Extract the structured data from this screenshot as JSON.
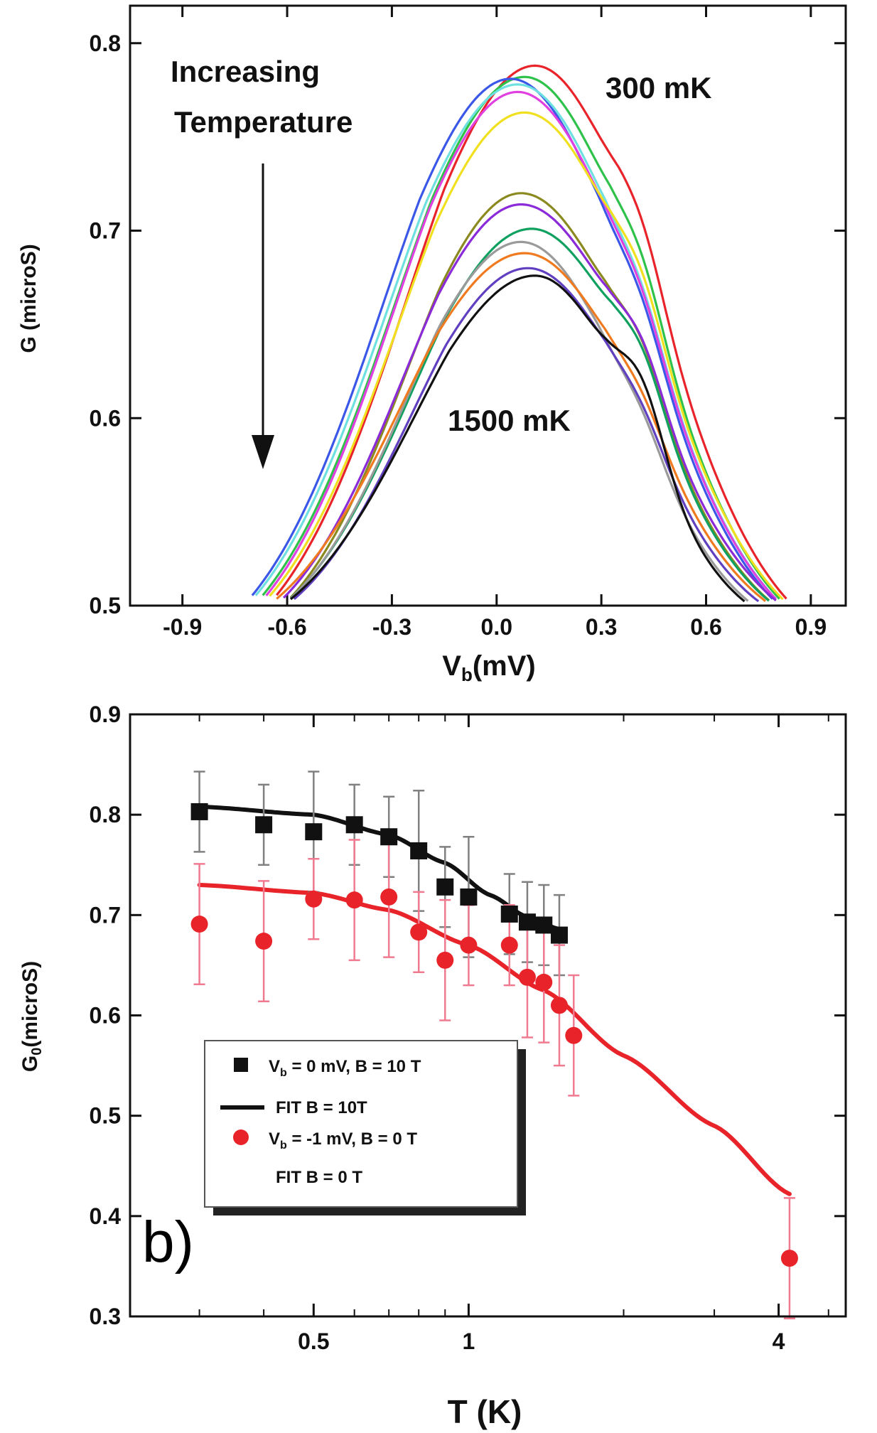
{
  "chart_data": [
    {
      "type": "line",
      "panel": "top",
      "xlabel": "V",
      "xlabel_sub": "b",
      "xlabel_unit": "(mV)",
      "ylabel": "G (microS)",
      "xlim": [
        -1.05,
        1.0
      ],
      "ylim": [
        0.5,
        0.82
      ],
      "xticks": [
        "-0.9",
        "-0.6",
        "-0.3",
        "0.0",
        "0.3",
        "0.6",
        "0.9"
      ],
      "xtick_values": [
        -0.9,
        -0.6,
        -0.3,
        0.0,
        0.3,
        0.6,
        0.9
      ],
      "yticks": [
        "0.5",
        "0.6",
        "0.7",
        "0.8"
      ],
      "ytick_values": [
        0.5,
        0.6,
        0.7,
        0.8
      ],
      "annotations": {
        "increasing_line1": "Increasing",
        "increasing_line2": "Temperature",
        "label_300": "300 mK",
        "label_1500": "1500 mK"
      },
      "series": [
        {
          "color": "#e8232a",
          "peak_x": 0.11,
          "peak_y": 0.788,
          "left_x": -0.63,
          "right_x": 0.83,
          "shoulder": 0.02
        },
        {
          "color": "#2ec24a",
          "peak_x": 0.08,
          "peak_y": 0.782,
          "left_x": -0.67,
          "right_x": 0.81,
          "shoulder": 0.02
        },
        {
          "color": "#3a57e8",
          "peak_x": 0.04,
          "peak_y": 0.781,
          "left_x": -0.7,
          "right_x": 0.79,
          "shoulder": 0.015
        },
        {
          "color": "#6ee0e0",
          "peak_x": 0.06,
          "peak_y": 0.778,
          "left_x": -0.69,
          "right_x": 0.8,
          "shoulder": 0.015
        },
        {
          "color": "#e040e0",
          "peak_x": 0.06,
          "peak_y": 0.774,
          "left_x": -0.66,
          "right_x": 0.8,
          "shoulder": 0.015
        },
        {
          "color": "#f0e020",
          "peak_x": 0.08,
          "peak_y": 0.763,
          "left_x": -0.65,
          "right_x": 0.82,
          "shoulder": 0.02
        },
        {
          "color": "#8a8a20",
          "peak_x": 0.07,
          "peak_y": 0.72,
          "left_x": -0.59,
          "right_x": 0.78,
          "shoulder": 0.02
        },
        {
          "color": "#8a2ad8",
          "peak_x": 0.07,
          "peak_y": 0.714,
          "left_x": -0.61,
          "right_x": 0.8,
          "shoulder": 0.02
        },
        {
          "color": "#10a060",
          "peak_x": 0.1,
          "peak_y": 0.701,
          "left_x": -0.59,
          "right_x": 0.78,
          "shoulder": 0.02
        },
        {
          "color": "#9a9a9a",
          "peak_x": 0.07,
          "peak_y": 0.694,
          "left_x": -0.59,
          "right_x": 0.72,
          "shoulder": 0.01
        },
        {
          "color": "#f07a20",
          "peak_x": 0.08,
          "peak_y": 0.688,
          "left_x": -0.63,
          "right_x": 0.77,
          "shoulder": 0.01
        },
        {
          "color": "#6040c0",
          "peak_x": 0.09,
          "peak_y": 0.68,
          "left_x": -0.58,
          "right_x": 0.75,
          "shoulder": 0.01
        },
        {
          "color": "#111111",
          "peak_x": 0.11,
          "peak_y": 0.676,
          "left_x": -0.59,
          "right_x": 0.71,
          "shoulder": 0.03
        }
      ]
    },
    {
      "type": "scatter",
      "panel": "bottom",
      "xlabel": "T (K)",
      "ylabel": "G",
      "ylabel_sub": "0",
      "ylabel_unit": "(microS)",
      "xscale": "log",
      "xlim": [
        0.22,
        5.4
      ],
      "ylim": [
        0.3,
        0.9
      ],
      "xticks": [
        "0.5",
        "1",
        "4"
      ],
      "xtick_values": [
        0.5,
        1,
        4
      ],
      "yticks": [
        "0.3",
        "0.4",
        "0.5",
        "0.6",
        "0.7",
        "0.8",
        "0.9"
      ],
      "ytick_values": [
        0.3,
        0.4,
        0.5,
        0.6,
        0.7,
        0.8,
        0.9
      ],
      "panel_label": "b)",
      "legend": {
        "position": "lower-left",
        "entry1_main": "V",
        "entry1_sub": "b",
        "entry1_rest": " = 0 mV, B = 10 T",
        "entry2": "FIT B = 10T",
        "entry3_main": "V",
        "entry3_sub": "b",
        "entry3_rest": " = -1  mV, B = 0 T",
        "entry4": "FIT B = 0 T"
      },
      "series": [
        {
          "color": "#111111",
          "marker": "square",
          "error_color": "#808080",
          "x": [
            0.3,
            0.4,
            0.5,
            0.6,
            0.7,
            0.8,
            0.9,
            1.0,
            1.2,
            1.3,
            1.4,
            1.5
          ],
          "y": [
            0.803,
            0.79,
            0.783,
            0.79,
            0.778,
            0.764,
            0.728,
            0.718,
            0.701,
            0.693,
            0.69,
            0.68
          ],
          "err": [
            0.04,
            0.04,
            0.06,
            0.04,
            0.04,
            0.06,
            0.04,
            0.06,
            0.04,
            0.04,
            0.04,
            0.04
          ]
        },
        {
          "color": "#e8232a",
          "marker": "circle",
          "error_color": "#f07a90",
          "x": [
            0.3,
            0.4,
            0.5,
            0.6,
            0.7,
            0.8,
            0.9,
            1.0,
            1.2,
            1.3,
            1.4,
            1.5,
            1.6,
            4.2
          ],
          "y": [
            0.691,
            0.674,
            0.716,
            0.715,
            0.718,
            0.683,
            0.655,
            0.67,
            0.67,
            0.638,
            0.633,
            0.61,
            0.58,
            0.358
          ],
          "err": [
            0.06,
            0.06,
            0.04,
            0.06,
            0.06,
            0.04,
            0.06,
            0.04,
            0.04,
            0.06,
            0.06,
            0.06,
            0.06,
            0.06
          ]
        }
      ],
      "fits": [
        {
          "color": "#111111",
          "x": [
            0.3,
            0.5,
            0.7,
            0.9,
            1.1,
            1.3,
            1.5
          ],
          "y": [
            0.808,
            0.8,
            0.78,
            0.752,
            0.72,
            0.698,
            0.686
          ]
        },
        {
          "color": "#e8232a",
          "x": [
            0.3,
            0.5,
            0.7,
            1.0,
            1.4,
            2.0,
            3.0,
            4.2
          ],
          "y": [
            0.73,
            0.722,
            0.705,
            0.67,
            0.625,
            0.56,
            0.49,
            0.422
          ]
        }
      ]
    }
  ]
}
